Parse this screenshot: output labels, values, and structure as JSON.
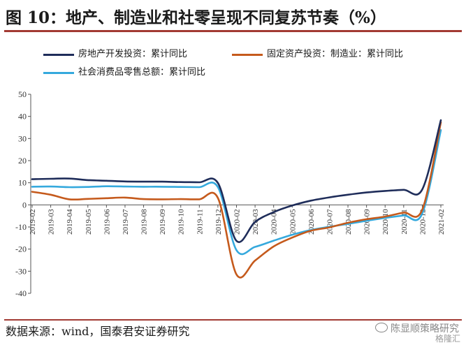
{
  "header": {
    "title": "图 10：地产、制造业和社零呈现不同复苏节奏（%）"
  },
  "footer": {
    "source": "数据来源：wind，国泰君安证券研究",
    "watermark": "陈显顺策略研究",
    "brand": "格隆汇"
  },
  "colors": {
    "accent_rule": "#a23a33",
    "axis": "#555555"
  },
  "chart_data": {
    "type": "line",
    "title": "",
    "xlabel": "",
    "ylabel": "",
    "ylim": [
      -40,
      50
    ],
    "yticks": [
      50,
      40,
      30,
      20,
      10,
      0,
      -10,
      -20,
      -30,
      -40
    ],
    "grid": false,
    "legend_position": "top",
    "categories": [
      "2019-02",
      "2019-03",
      "2019-04",
      "2019-05",
      "2019-06",
      "2019-07",
      "2019-08",
      "2019-09",
      "2019-10",
      "2019-11",
      "2019-12",
      "2020-02",
      "2020-03",
      "2020-04",
      "2020-05",
      "2020-06",
      "2020-07",
      "2020-08",
      "2020-09",
      "2020-10",
      "2020-11",
      "2020-12",
      "2021-02"
    ],
    "series": [
      {
        "name": "房地产开发投资：累计同比",
        "color": "#1f2d5a",
        "values": [
          11.6,
          11.8,
          11.9,
          11.2,
          10.9,
          10.6,
          10.5,
          10.5,
          10.3,
          10.2,
          9.9,
          -16.3,
          -7.7,
          -3.3,
          -0.3,
          1.9,
          3.4,
          4.6,
          5.6,
          6.3,
          6.8,
          7.0,
          38.3
        ]
      },
      {
        "name": "固定资产投资：制造业：累计同比",
        "color": "#c55a1c",
        "values": [
          5.9,
          4.6,
          2.5,
          2.7,
          3.0,
          3.3,
          2.6,
          2.5,
          2.6,
          2.5,
          3.1,
          -31.5,
          -25.2,
          -18.8,
          -14.8,
          -11.7,
          -10.2,
          -8.1,
          -6.5,
          -5.3,
          -3.5,
          -2.2,
          37.3
        ]
      },
      {
        "name": "社会消费品零售总额：累计同比",
        "color": "#35a9dd",
        "values": [
          8.2,
          8.3,
          8.0,
          8.1,
          8.4,
          8.3,
          8.2,
          8.2,
          8.1,
          8.0,
          8.0,
          -20.5,
          -19.0,
          -16.2,
          -13.5,
          -11.4,
          -9.9,
          -8.6,
          -7.2,
          -5.9,
          -4.8,
          -3.9,
          33.8
        ]
      }
    ]
  }
}
